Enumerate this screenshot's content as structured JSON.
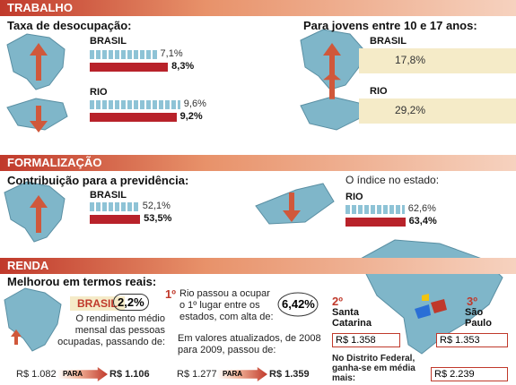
{
  "trabalho": {
    "header": "TRABALHO",
    "left": {
      "title": "Taxa de desocupação:",
      "items": [
        {
          "label": "BRASIL",
          "values": [
            7.1,
            8.3
          ],
          "value_labels": [
            "7,1%",
            "8,3%"
          ]
        },
        {
          "label": "RIO",
          "values": [
            9.6,
            9.2
          ],
          "value_labels": [
            "9,6%",
            "9,2%"
          ]
        }
      ]
    },
    "right": {
      "title": "Para jovens entre 10 e 17 anos:",
      "items": [
        {
          "label": "BRASIL",
          "value_label": "17,8%"
        },
        {
          "label": "RIO",
          "value_label": "29,2%"
        }
      ]
    }
  },
  "formalizacao": {
    "header": "FORMALIZAÇÃO",
    "left": {
      "title": "Contribuição para a previdência:",
      "items": [
        {
          "label": "BRASIL",
          "values": [
            52.1,
            53.5
          ],
          "value_labels": [
            "52,1%",
            "53,5%"
          ]
        }
      ]
    },
    "right": {
      "title": "O índice no estado:",
      "items": [
        {
          "label": "RIO",
          "values": [
            62.6,
            63.4
          ],
          "value_labels": [
            "62,6%",
            "63,4%"
          ]
        }
      ]
    }
  },
  "renda": {
    "header": "RENDA",
    "title": "Melhorou em termos reais:",
    "brasil_label": "BRASIL",
    "brasil_value": "2,2%",
    "brasil_text": "O rendimento médio mensal das pessoas ocupadas, passando de:",
    "brasil_from": "R$ 1.082",
    "brasil_para": "PARA",
    "brasil_to": "R$ 1.106",
    "rio_rank": "1º",
    "rio_text": "Rio passou a ocupar o 1º lugar entre os estados, com alta de:",
    "rio_value": "6,42%",
    "rio_text2": "Em valores atualizados, de 2008 para 2009, passou de:",
    "rio_from": "R$ 1.277",
    "rio_para": "PARA",
    "rio_to": "R$ 1.359",
    "sc_rank": "2º",
    "sc_name": "Santa Catarina",
    "sc_value": "R$ 1.358",
    "sp_rank": "3º",
    "sp_name": "São Paulo",
    "sp_value": "R$ 1.353",
    "df_text": "No Distrito Federal, ganha-se em média mais:",
    "df_value": "R$ 2.239"
  }
}
